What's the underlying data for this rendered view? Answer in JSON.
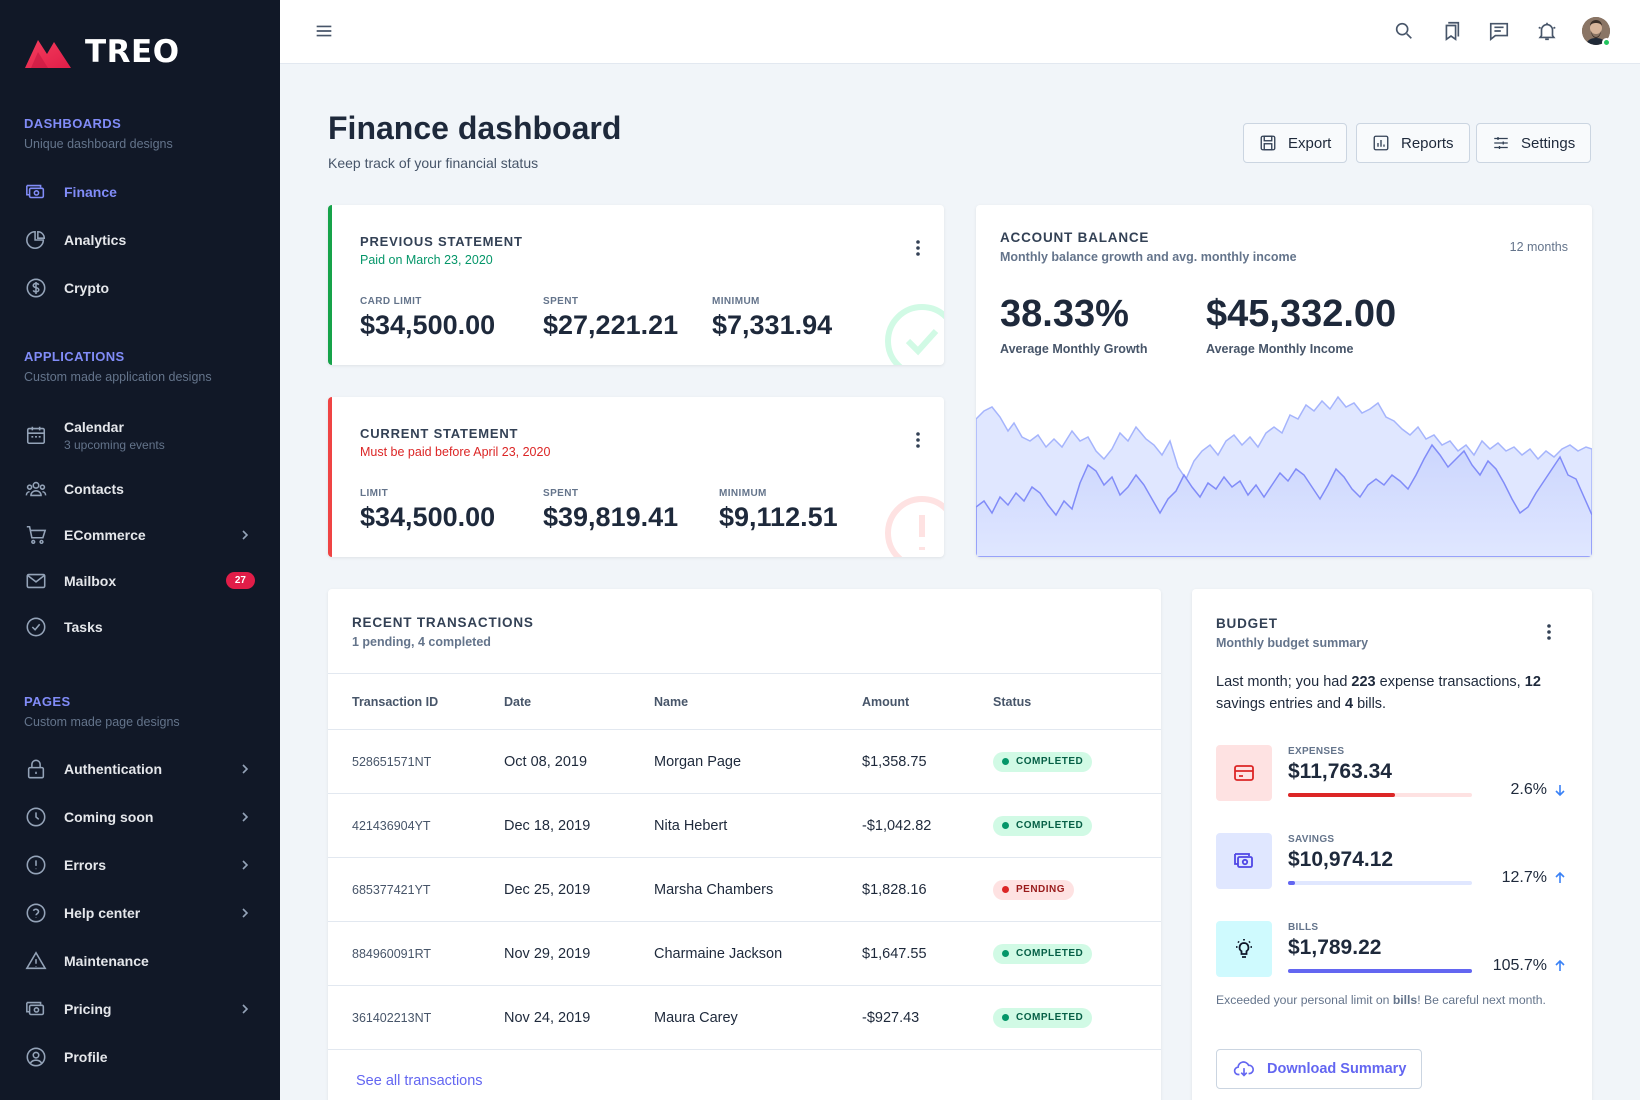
{
  "app": {
    "name": "TREO"
  },
  "sidebar": {
    "sections": [
      {
        "heading": "DASHBOARDS",
        "sub": "Unique dashboard designs"
      },
      {
        "heading": "APPLICATIONS",
        "sub": "Custom made application designs"
      },
      {
        "heading": "PAGES",
        "sub": "Custom made page designs"
      }
    ],
    "dashboards": [
      {
        "label": "Finance",
        "icon": "cash-icon"
      },
      {
        "label": "Analytics",
        "icon": "chart-pie-icon"
      },
      {
        "label": "Crypto",
        "icon": "currency-dollar-icon"
      }
    ],
    "applications": [
      {
        "label": "Calendar",
        "sub": "3 upcoming events",
        "icon": "calendar-icon"
      },
      {
        "label": "Contacts",
        "icon": "user-group-icon"
      },
      {
        "label": "ECommerce",
        "icon": "shopping-cart-icon"
      },
      {
        "label": "Mailbox",
        "icon": "mail-icon",
        "badge": "27"
      },
      {
        "label": "Tasks",
        "icon": "check-circle-icon"
      }
    ],
    "pages": [
      {
        "label": "Authentication",
        "icon": "lock-icon"
      },
      {
        "label": "Coming soon",
        "icon": "clock-icon"
      },
      {
        "label": "Errors",
        "icon": "exclamation-circle-icon"
      },
      {
        "label": "Help center",
        "icon": "question-circle-icon"
      },
      {
        "label": "Maintenance",
        "icon": "warning-icon"
      },
      {
        "label": "Pricing",
        "icon": "cash-icon"
      },
      {
        "label": "Profile",
        "icon": "user-circle-icon"
      }
    ]
  },
  "header": {
    "title": "Finance dashboard",
    "subtitle": "Keep track of your financial status",
    "buttons": {
      "export": "Export",
      "reports": "Reports",
      "settings": "Settings"
    }
  },
  "previous_statement": {
    "title": "PREVIOUS STATEMENT",
    "sub": "Paid on March 23, 2020",
    "card_limit_label": "CARD LIMIT",
    "card_limit": "$34,500.00",
    "spent_label": "SPENT",
    "spent": "$27,221.21",
    "minimum_label": "MINIMUM",
    "minimum": "$7,331.94"
  },
  "current_statement": {
    "title": "CURRENT STATEMENT",
    "sub": "Must be paid before April 23, 2020",
    "limit_label": "LIMIT",
    "limit": "$34,500.00",
    "spent_label": "SPENT",
    "spent": "$39,819.41",
    "minimum_label": "MINIMUM",
    "minimum": "$9,112.51"
  },
  "account_balance": {
    "title": "ACCOUNT BALANCE",
    "sub": "Monthly balance growth and avg. monthly income",
    "period": "12 months",
    "growth": "38.33%",
    "growth_label": "Average Monthly Growth",
    "income": "$45,332.00",
    "income_label": "Average Monthly Income"
  },
  "transactions": {
    "title": "RECENT TRANSACTIONS",
    "sub": "1 pending, 4 completed",
    "columns": [
      "Transaction ID",
      "Date",
      "Name",
      "Amount",
      "Status"
    ],
    "rows": [
      {
        "id": "528651571NT",
        "date": "Oct 08, 2019",
        "name": "Morgan Page",
        "amount": "$1,358.75",
        "status": "COMPLETED"
      },
      {
        "id": "421436904YT",
        "date": "Dec 18, 2019",
        "name": "Nita Hebert",
        "amount": "-$1,042.82",
        "status": "COMPLETED"
      },
      {
        "id": "685377421YT",
        "date": "Dec 25, 2019",
        "name": "Marsha Chambers",
        "amount": "$1,828.16",
        "status": "PENDING"
      },
      {
        "id": "884960091RT",
        "date": "Nov 29, 2019",
        "name": "Charmaine Jackson",
        "amount": "$1,647.55",
        "status": "COMPLETED"
      },
      {
        "id": "361402213NT",
        "date": "Nov 24, 2019",
        "name": "Maura Carey",
        "amount": "-$927.43",
        "status": "COMPLETED"
      }
    ],
    "see_all": "See all transactions"
  },
  "budget": {
    "title": "BUDGET",
    "sub": "Monthly budget summary",
    "desc_1": "Last month; you had ",
    "desc_n1": "223",
    "desc_2": " expense transactions, ",
    "desc_n2": "12",
    "desc_3": " savings entries and ",
    "desc_n3": "4",
    "desc_4": " bills.",
    "expenses": {
      "label": "EXPENSES",
      "value": "$11,763.34",
      "pct": "2.6%",
      "fill": 0.58,
      "trend": "down",
      "color": "#dc2626"
    },
    "savings": {
      "label": "SAVINGS",
      "value": "$10,974.12",
      "pct": "12.7%",
      "fill": 0.04,
      "trend": "up",
      "color": "#6366f1"
    },
    "bills": {
      "label": "BILLS",
      "value": "$1,789.22",
      "pct": "105.7%",
      "fill": 1.0,
      "trend": "up",
      "color": "#6366f1"
    },
    "note_1": "Exceeded your personal limit on ",
    "note_bold": "bills",
    "note_2": "! Be careful next month.",
    "download": "Download Summary"
  },
  "colors": {
    "accent": "#6366f1",
    "sidebar_bg": "#111827",
    "green": "#059669",
    "red": "#dc2626",
    "brand": "#e11d48"
  }
}
